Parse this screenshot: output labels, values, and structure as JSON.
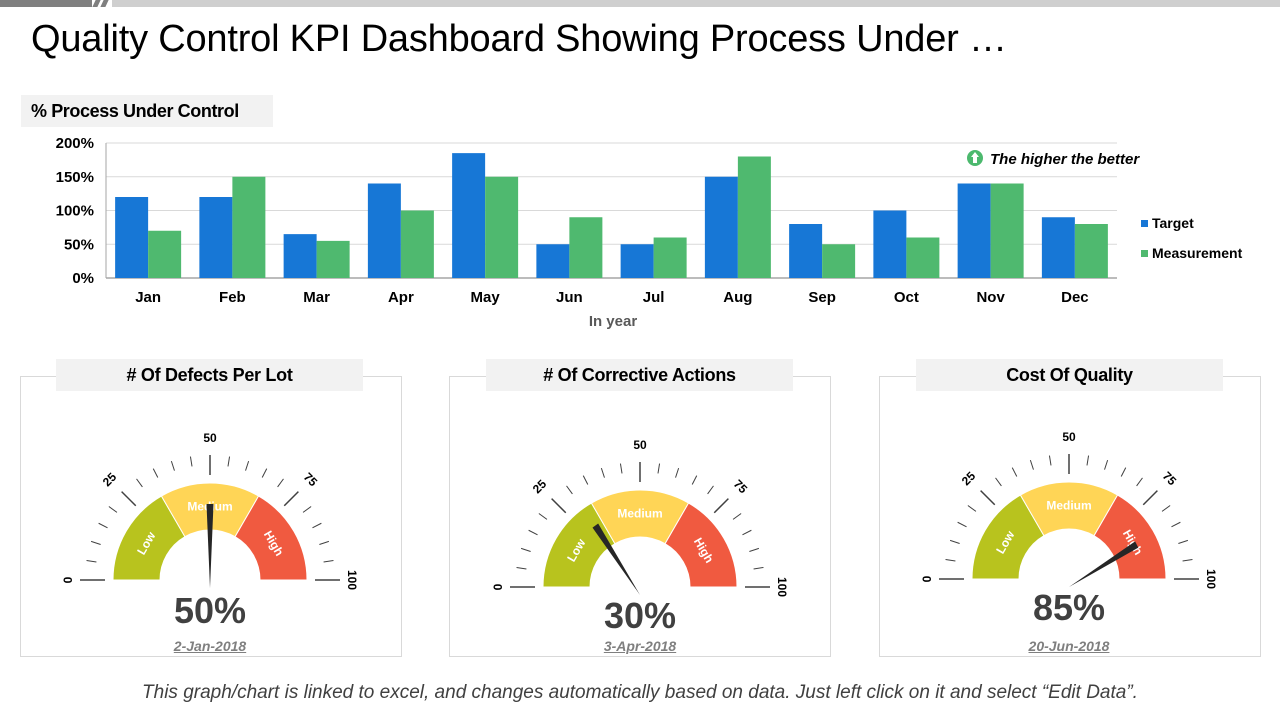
{
  "title": "Quality Control KPI Dashboard Showing Process Under …",
  "section_label": "% Process Under Control",
  "note": {
    "icon": "arrow-up-circle-icon",
    "text": "The higher the better",
    "icon_color": "#4cb96e"
  },
  "footnote": "This graph/chart is linked to excel, and changes automatically based on data. Just left click on it and select “Edit Data”.",
  "colors": {
    "target": "#1777d6",
    "measurement": "#4fb96f",
    "low": "#b8c31e",
    "medium": "#ffd556",
    "high": "#f05a40",
    "needle": "#262626"
  },
  "chart_data": [
    {
      "type": "bar",
      "title": "% Process Under Control",
      "xlabel": "In year",
      "ylabel": "",
      "ylim": [
        0,
        200
      ],
      "yticks": [
        "0%",
        "50%",
        "100%",
        "150%",
        "200%"
      ],
      "grid": true,
      "legend_position": "right",
      "categories": [
        "Jan",
        "Feb",
        "Mar",
        "Apr",
        "May",
        "Jun",
        "Jul",
        "Aug",
        "Sep",
        "Oct",
        "Nov",
        "Dec"
      ],
      "series": [
        {
          "name": "Target",
          "values": [
            120,
            120,
            65,
            140,
            185,
            50,
            50,
            150,
            80,
            100,
            140,
            90
          ]
        },
        {
          "name": "Measurement",
          "values": [
            70,
            150,
            55,
            100,
            150,
            90,
            60,
            180,
            50,
            60,
            140,
            80
          ]
        }
      ]
    },
    {
      "type": "gauge",
      "title": "# Of Defects Per Lot",
      "value": 50,
      "value_label": "50%",
      "date": "2-Jan-2018",
      "range": [
        0,
        100
      ],
      "tick_labels": [
        "0",
        "25",
        "50",
        "75",
        "100"
      ],
      "bands": [
        {
          "label": "Low",
          "from": 0,
          "to": 33.3
        },
        {
          "label": "Medium",
          "from": 33.3,
          "to": 66.7
        },
        {
          "label": "High",
          "from": 66.7,
          "to": 100
        }
      ]
    },
    {
      "type": "gauge",
      "title": "# Of Corrective Actions",
      "value": 30,
      "value_label": "30%",
      "date": "3-Apr-2018",
      "range": [
        0,
        100
      ],
      "tick_labels": [
        "0",
        "25",
        "50",
        "75",
        "100"
      ],
      "bands": [
        {
          "label": "Low",
          "from": 0,
          "to": 33.3
        },
        {
          "label": "Medium",
          "from": 33.3,
          "to": 66.7
        },
        {
          "label": "High",
          "from": 66.7,
          "to": 100
        }
      ]
    },
    {
      "type": "gauge",
      "title": "Cost Of Quality",
      "value": 85,
      "value_label": "85%",
      "date": "20-Jun-2018",
      "range": [
        0,
        100
      ],
      "tick_labels": [
        "0",
        "25",
        "50",
        "75",
        "100"
      ],
      "bands": [
        {
          "label": "Low",
          "from": 0,
          "to": 33.3
        },
        {
          "label": "Medium",
          "from": 33.3,
          "to": 66.7
        },
        {
          "label": "High",
          "from": 66.7,
          "to": 100
        }
      ]
    }
  ]
}
